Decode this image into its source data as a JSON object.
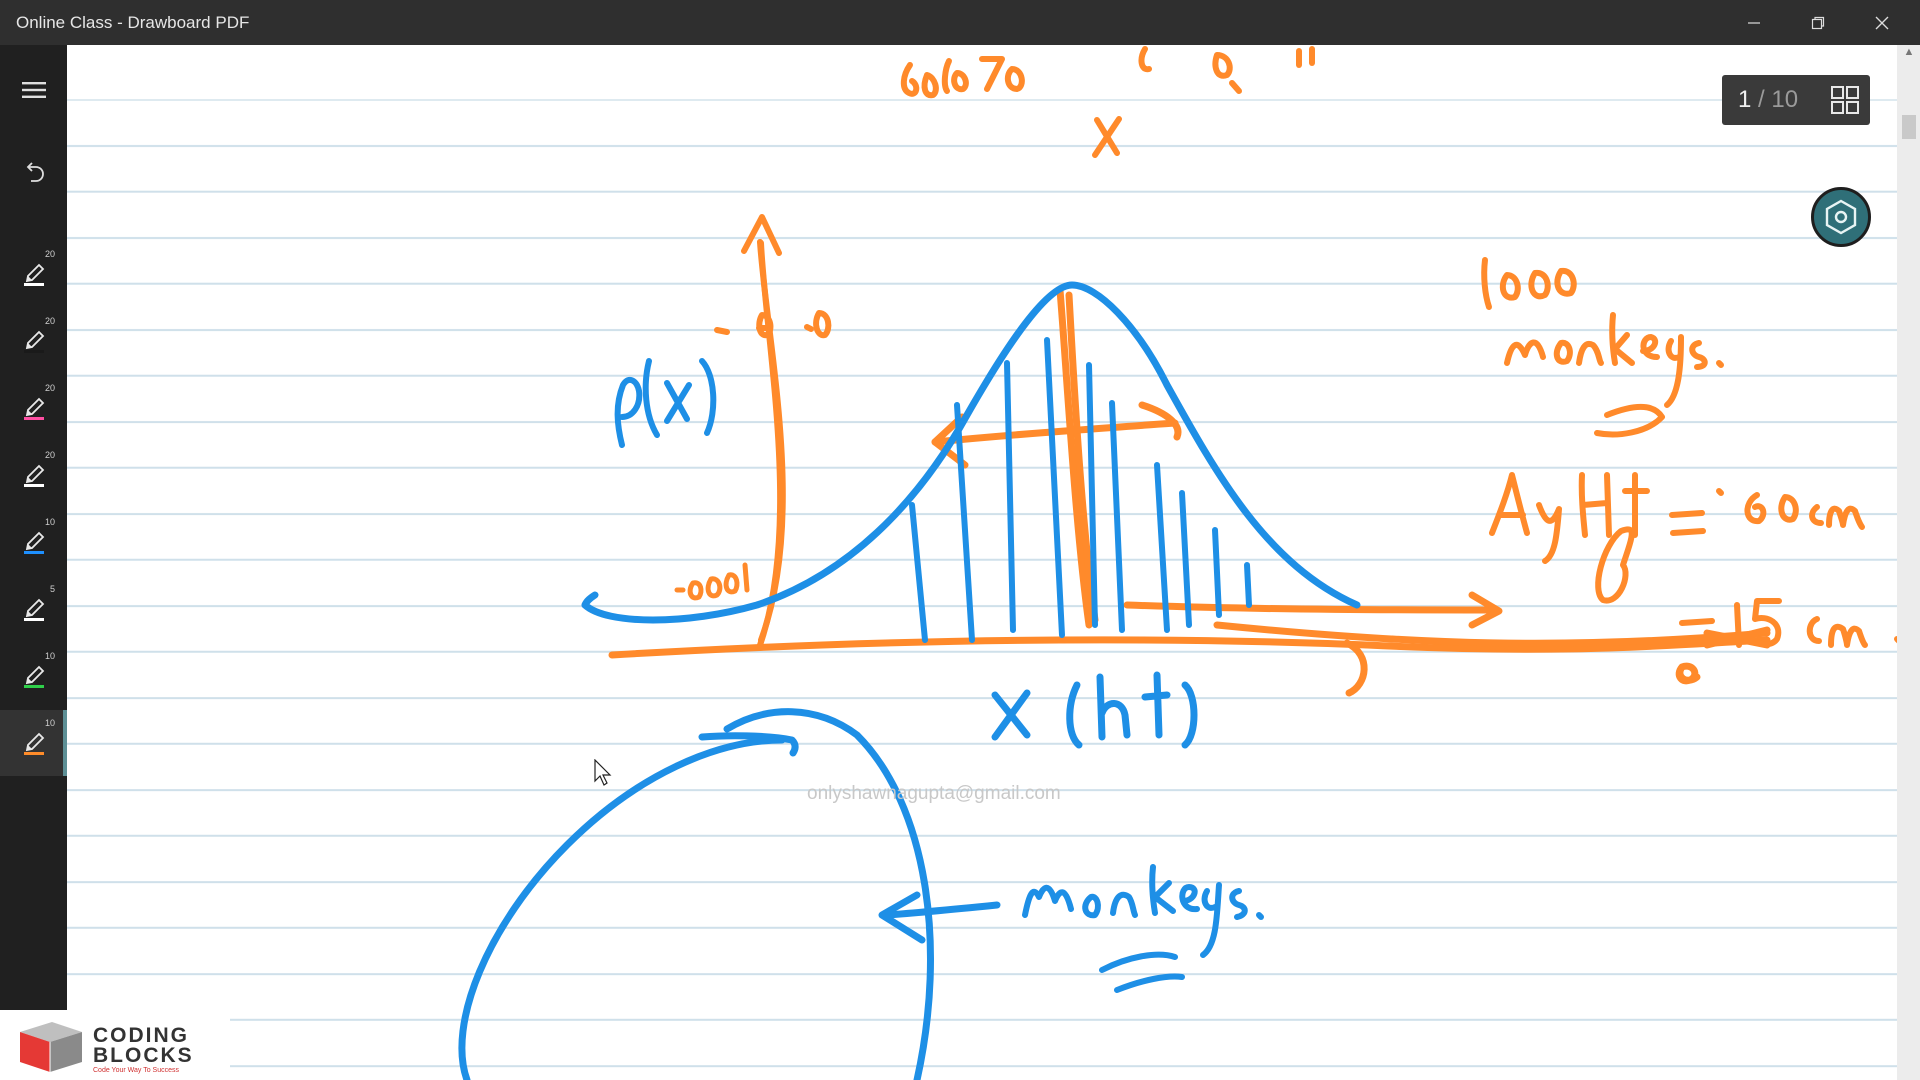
{
  "window": {
    "title": "Online Class - Drawboard PDF"
  },
  "sidebar": {
    "items": [
      {
        "icon": "menu-icon"
      },
      {
        "icon": "undo-icon"
      },
      {
        "icon": "pen-icon",
        "size": "20",
        "color": "#ffffff"
      },
      {
        "icon": "pen-icon",
        "size": "20",
        "color": "#1a1a1a"
      },
      {
        "icon": "pen-icon",
        "size": "20",
        "color": "#ff4fa3"
      },
      {
        "icon": "pen-icon",
        "size": "20",
        "color": "#ffffff"
      },
      {
        "icon": "pen-icon",
        "size": "10",
        "color": "#1e90ff"
      },
      {
        "icon": "pen-icon",
        "size": "5",
        "color": "#ffffff"
      },
      {
        "icon": "pen-icon",
        "size": "10",
        "color": "#2fd04a"
      },
      {
        "icon": "pen-icon",
        "size": "10",
        "color": "#ff8c2a",
        "active": true
      }
    ]
  },
  "page_indicator": {
    "current": "1",
    "separator": "/",
    "total": "10"
  },
  "watermark": "onlyshawnagupta@gmail.com",
  "logo": {
    "line1": "CODING",
    "line2": "BLOCKS",
    "tagline": "Code Your Way To Success"
  },
  "ink_colors": {
    "orange": "#ff8a2b",
    "blue": "#1e8fe6"
  }
}
